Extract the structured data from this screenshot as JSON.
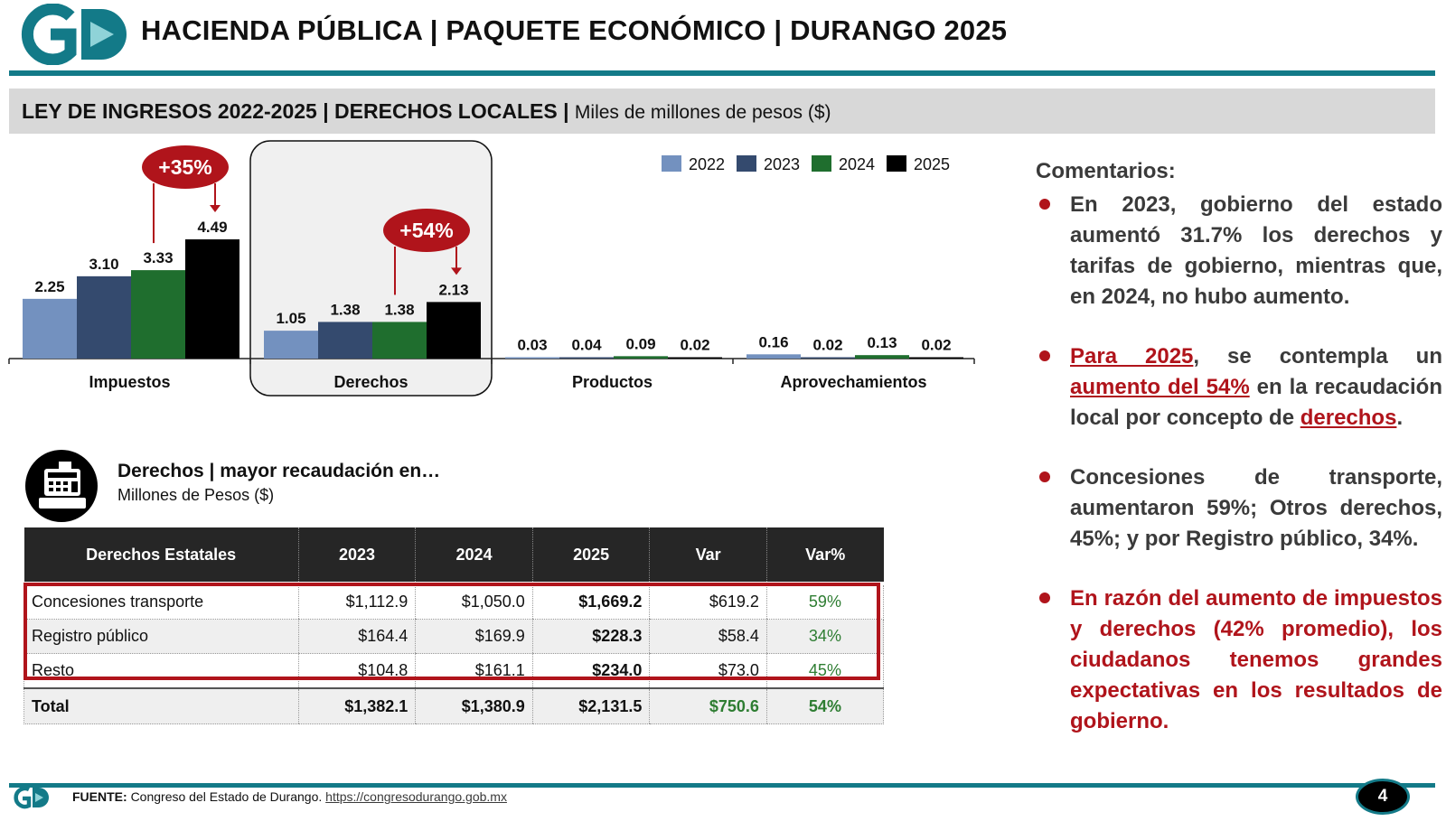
{
  "header": {
    "logo_text": "GD",
    "title": "HACIENDA PÚBLICA | PAQUETE ECONÓMICO | DURANGO 2025"
  },
  "subheader": {
    "title": "LEY DE INGRESOS 2022-2025 | DERECHOS LOCALES |",
    "units": "Miles de millones de pesos ($)"
  },
  "chart_data": {
    "type": "bar",
    "categories": [
      "Impuestos",
      "Derechos",
      "Productos",
      "Aprovechamientos"
    ],
    "series": [
      {
        "name": "2022",
        "color": "#7391bf",
        "values": [
          2.25,
          1.05,
          0.03,
          0.16
        ],
        "labels": [
          "2.25",
          "1.05",
          "0.03",
          "0.16"
        ]
      },
      {
        "name": "2023",
        "color": "#344a6e",
        "values": [
          3.1,
          1.38,
          0.04,
          0.02
        ],
        "labels": [
          "3.10",
          "1.38",
          "0.04",
          "0.02"
        ]
      },
      {
        "name": "2024",
        "color": "#1f6e2e",
        "values": [
          3.33,
          1.38,
          0.09,
          0.13
        ],
        "labels": [
          "3.33",
          "1.38",
          "0.09",
          "0.13"
        ]
      },
      {
        "name": "2025",
        "color": "#000000",
        "values": [
          4.49,
          2.13,
          0.02,
          0.02
        ],
        "labels": [
          "4.49",
          "2.13",
          "0.02",
          "0.02"
        ]
      }
    ],
    "annotations": [
      {
        "category": "Impuestos",
        "text": "+35%"
      },
      {
        "category": "Derechos",
        "text": "+54%"
      }
    ],
    "highlighted_category": "Derechos",
    "legend_position": "top-right",
    "grid": false,
    "ylim": [
      0,
      4.49
    ]
  },
  "table_section": {
    "title": "Derechos | mayor recaudación en…",
    "subtitle": "Millones de Pesos ($)",
    "headers": [
      "Derechos  Estatales",
      "2023",
      "2024",
      "2025",
      "Var",
      "Var%"
    ],
    "rows": [
      [
        "Concesiones transporte",
        "$1,112.9",
        "$1,050.0",
        "$1,669.2",
        "$619.2",
        "59%"
      ],
      [
        "Registro público",
        "$164.4",
        "$169.9",
        "$228.3",
        "$58.4",
        "34%"
      ],
      [
        "Resto",
        "$104.8",
        "$161.1",
        "$234.0",
        "$73.0",
        "45%"
      ]
    ],
    "total": [
      "Total",
      "$1,382.1",
      "$1,380.9",
      "$2,131.5",
      "$750.6",
      "54%"
    ]
  },
  "comments": {
    "title": "Comentarios:",
    "c1": "En 2023, gobierno del estado aumentó 31.7% los derechos y tarifas de gobierno, mientras que, en 2024, no hubo aumento.",
    "c2_a": "Para 2025",
    "c2_b": ", se contempla un ",
    "c2_c": "aumento del 54%",
    "c2_d": " en la recaudación local por concepto de ",
    "c2_e": "derechos",
    "c2_f": ".",
    "c3": "Concesiones de transporte, aumentaron 59%; Otros derechos, 45%; y por Registro público, 34%.",
    "c4": "En razón del aumento de impuestos y derechos (42% promedio), los ciudadanos tenemos grandes expectativas en los resultados de gobierno."
  },
  "footer": {
    "source_label": "FUENTE:",
    "source_text": "Congreso del Estado de Durango.",
    "source_link": "https://congresodurango.gob.mx",
    "page_number": "4"
  },
  "colors": {
    "teal": "#137a88",
    "accent_red": "#b0141b",
    "green_text": "#2e7d32"
  }
}
